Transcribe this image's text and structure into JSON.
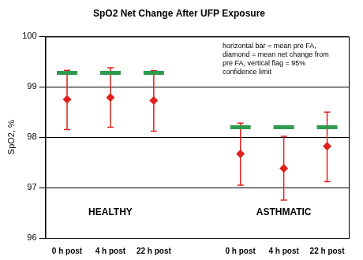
{
  "chart_data": {
    "type": "dot",
    "title": "SpO2 Net Change After UFP Exposure",
    "y_label": "SpO2, %",
    "categories": [
      "0 h post",
      "4 h post",
      "22 h post",
      null,
      "0 h post",
      "4 h post",
      "22 h post"
    ],
    "group_labels": [
      "HEALTHY",
      "ASTHMATIC"
    ],
    "annotation": [
      "horizontal bar = mean pre FA,",
      "diamond = mean net change from",
      "pre FA, vertical flag = 95%",
      "confidence limit"
    ],
    "series": [
      {
        "color": "#2e9a4e",
        "marker": "dash",
        "values": [
          99.28,
          99.28,
          99.28,
          null,
          98.2,
          98.2,
          98.2
        ]
      },
      {
        "color": "#e0201b",
        "marker": "diamond",
        "values": [
          98.75,
          98.79,
          98.73,
          null,
          97.67,
          97.38,
          97.82
        ],
        "error_low": [
          98.15,
          98.2,
          98.12,
          null,
          97.05,
          96.75,
          97.12
        ],
        "error_high": [
          99.33,
          99.38,
          99.32,
          null,
          98.28,
          98.02,
          98.5
        ]
      }
    ],
    "ylim": [
      96,
      100
    ],
    "yticks": [
      96,
      97,
      98,
      99,
      100
    ],
    "grid": true
  }
}
